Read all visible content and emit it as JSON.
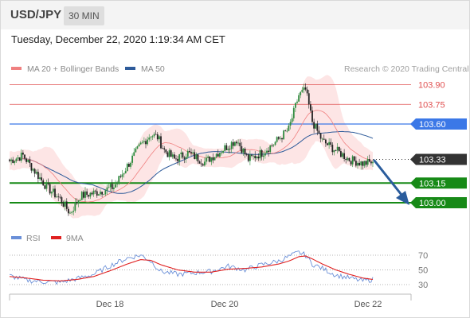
{
  "header": {
    "symbol": "USD/JPY",
    "timeframe": "30 MIN"
  },
  "datetime": "Tuesday, December 22, 2020 1:19:34 AM CET",
  "copyright": "Research © 2020 Trading Central",
  "legend": {
    "ma20": {
      "label": "MA 20 + Bollinger Bands",
      "color": "#f08080"
    },
    "ma50": {
      "label": "MA 50",
      "color": "#2e5b9a"
    }
  },
  "rsi_legend": {
    "rsi": {
      "label": "RSI",
      "color": "#6a8fd8"
    },
    "ma9": {
      "label": "9MA",
      "color": "#e02020"
    }
  },
  "colors": {
    "resistance": "#e05050",
    "pivot": "#3b78e7",
    "support": "#178a17",
    "current": "#333333",
    "arrow": "#2a5c9c",
    "bullish": "#2e8b3e",
    "bearish": "#222222",
    "band_fill": "#fde0e0"
  },
  "chart_data": [
    {
      "type": "candlestick",
      "title": "USD/JPY 30 MIN",
      "ylim": [
        102.7,
        104.0
      ],
      "x_ticks": [
        "Dec 18",
        "Dec 20",
        "Dec 22"
      ],
      "levels": [
        {
          "kind": "resistance",
          "label": "103.90",
          "value": 103.9
        },
        {
          "kind": "resistance",
          "label": "103.75",
          "value": 103.75
        },
        {
          "kind": "pivot",
          "label": "103.60",
          "value": 103.6
        },
        {
          "kind": "current",
          "label": "103.33",
          "value": 103.33
        },
        {
          "kind": "support",
          "label": "103.15",
          "value": 103.15
        },
        {
          "kind": "support",
          "label": "103.00",
          "value": 103.0
        }
      ],
      "price_anchors": [
        [
          0,
          103.32
        ],
        [
          8,
          103.36
        ],
        [
          15,
          103.24
        ],
        [
          22,
          103.12
        ],
        [
          30,
          103.03
        ],
        [
          36,
          102.92
        ],
        [
          42,
          103.05
        ],
        [
          52,
          103.08
        ],
        [
          62,
          103.12
        ],
        [
          70,
          103.28
        ],
        [
          78,
          103.44
        ],
        [
          84,
          103.52
        ],
        [
          88,
          103.5
        ],
        [
          92,
          103.4
        ],
        [
          98,
          103.33
        ],
        [
          106,
          103.38
        ],
        [
          116,
          103.31
        ],
        [
          126,
          103.4
        ],
        [
          135,
          103.48
        ],
        [
          142,
          103.33
        ],
        [
          150,
          103.38
        ],
        [
          158,
          103.46
        ],
        [
          166,
          103.56
        ],
        [
          172,
          103.82
        ],
        [
          176,
          103.86
        ],
        [
          180,
          103.62
        ],
        [
          186,
          103.47
        ],
        [
          194,
          103.4
        ],
        [
          202,
          103.33
        ],
        [
          210,
          103.3
        ],
        [
          216,
          103.31
        ]
      ]
    },
    {
      "type": "line",
      "title": "RSI",
      "ylim": [
        20,
        80
      ],
      "y_ticks": [
        70,
        50,
        30
      ],
      "series": [
        {
          "name": "RSI",
          "anchors": [
            [
              0,
              42
            ],
            [
              10,
              36
            ],
            [
              20,
              34
            ],
            [
              30,
              33
            ],
            [
              40,
              38
            ],
            [
              50,
              44
            ],
            [
              60,
              56
            ],
            [
              70,
              66
            ],
            [
              78,
              70
            ],
            [
              84,
              62
            ],
            [
              90,
              48
            ],
            [
              100,
              44
            ],
            [
              110,
              46
            ],
            [
              120,
              48
            ],
            [
              130,
              55
            ],
            [
              140,
              50
            ],
            [
              150,
              57
            ],
            [
              160,
              62
            ],
            [
              166,
              68
            ],
            [
              172,
              74
            ],
            [
              176,
              70
            ],
            [
              180,
              58
            ],
            [
              186,
              52
            ],
            [
              194,
              43
            ],
            [
              202,
              39
            ],
            [
              210,
              35
            ],
            [
              216,
              37
            ]
          ]
        },
        {
          "name": "9MA",
          "anchors": [
            [
              0,
              41
            ],
            [
              10,
              39
            ],
            [
              20,
              36
            ],
            [
              30,
              35
            ],
            [
              40,
              37
            ],
            [
              50,
              41
            ],
            [
              60,
              49
            ],
            [
              70,
              58
            ],
            [
              78,
              64
            ],
            [
              84,
              63
            ],
            [
              90,
              57
            ],
            [
              100,
              50
            ],
            [
              110,
              47
            ],
            [
              120,
              47
            ],
            [
              130,
              51
            ],
            [
              140,
              52
            ],
            [
              150,
              54
            ],
            [
              160,
              58
            ],
            [
              166,
              62
            ],
            [
              172,
              68
            ],
            [
              176,
              69
            ],
            [
              180,
              65
            ],
            [
              186,
              58
            ],
            [
              194,
              50
            ],
            [
              202,
              44
            ],
            [
              210,
              39
            ],
            [
              216,
              37
            ]
          ]
        }
      ]
    }
  ]
}
